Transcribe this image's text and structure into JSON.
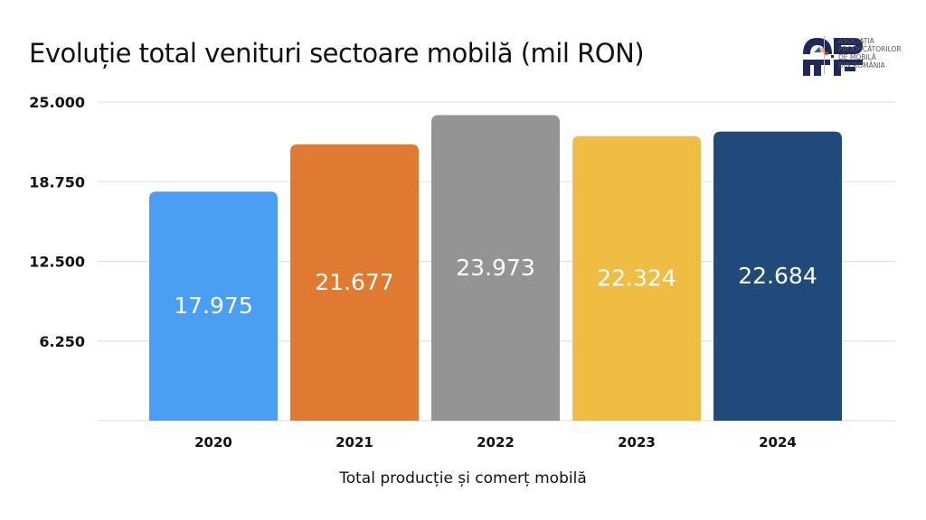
{
  "logo": {
    "text_lines": [
      "ASOCIAȚIA",
      "PRODUCĂTORILOR",
      "DE MOBILĂ",
      "DIN ROMÂNIA"
    ]
  },
  "chart_data": {
    "type": "bar",
    "title": "Evoluție total venituri sectoare mobilă (mil RON)",
    "xlabel": "Total producție și comerț mobilă",
    "ylabel": "",
    "categories": [
      "2020",
      "2021",
      "2022",
      "2023",
      "2024"
    ],
    "values": [
      17975,
      21677,
      23973,
      22324,
      22684
    ],
    "value_labels": [
      "17.975",
      "21.677",
      "23.973",
      "22.324",
      "22.684"
    ],
    "colors": [
      "#4A9FF5",
      "#E07A30",
      "#949494",
      "#EFBD42",
      "#1F4A7A"
    ],
    "ylim": [
      0,
      25000
    ],
    "yticks": [
      6250,
      12500,
      18750,
      25000
    ],
    "ytick_labels": [
      "6.250",
      "12.500",
      "18.750",
      "25.000"
    ],
    "grid": true,
    "legend": "none"
  }
}
